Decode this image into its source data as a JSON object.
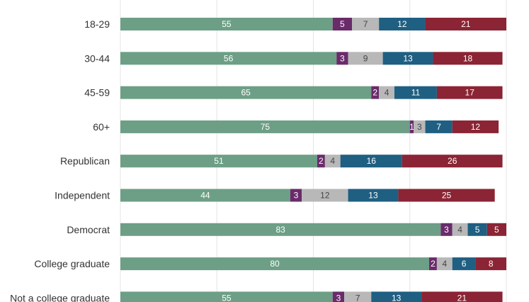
{
  "chart_data": {
    "type": "bar",
    "orientation": "horizontal",
    "stacked": true,
    "xlim": [
      0,
      100
    ],
    "grid": true,
    "categories": [
      "18-29",
      "30-44",
      "45-59",
      "60+",
      "Republican",
      "Independent",
      "Democrat",
      "College graduate",
      "Not a college graduate"
    ],
    "series": [
      {
        "color": "#6d9f86",
        "text_color": "#ffffff",
        "values": [
          55,
          56,
          65,
          75,
          51,
          44,
          83,
          80,
          55
        ]
      },
      {
        "color": "#6a2b6b",
        "text_color": "#ffffff",
        "values": [
          5,
          3,
          2,
          1,
          2,
          3,
          3,
          2,
          3
        ]
      },
      {
        "color": "#b8b8b8",
        "text_color": "#444444",
        "values": [
          7,
          9,
          4,
          3,
          4,
          12,
          4,
          4,
          7
        ]
      },
      {
        "color": "#1f5f82",
        "text_color": "#ffffff",
        "values": [
          12,
          13,
          11,
          7,
          16,
          13,
          5,
          6,
          13
        ]
      },
      {
        "color": "#8b2434",
        "text_color": "#ffffff",
        "values": [
          21,
          18,
          17,
          12,
          26,
          25,
          5,
          8,
          21
        ]
      }
    ]
  }
}
